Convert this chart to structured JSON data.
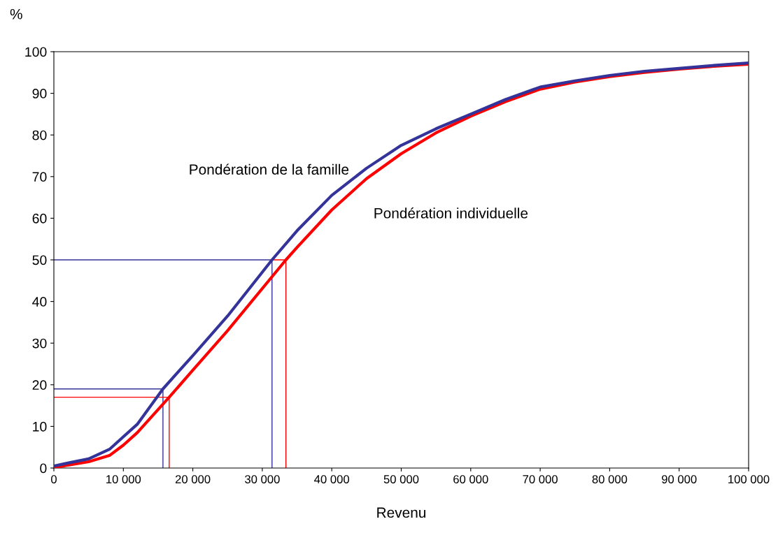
{
  "chart_data": {
    "type": "line",
    "xlabel": "Revenu",
    "ylabel": "%",
    "xlim": [
      0,
      100000
    ],
    "ylim": [
      0,
      100
    ],
    "xticks": [
      0,
      {
        "value": 10000,
        "label": "10 000"
      },
      {
        "value": 20000,
        "label": "20 000"
      },
      {
        "value": 30000,
        "label": "30 000"
      },
      {
        "value": 40000,
        "label": "40 000"
      },
      {
        "value": 50000,
        "label": "50 000"
      },
      {
        "value": 60000,
        "label": "60 000"
      },
      {
        "value": 70000,
        "label": "70 000"
      },
      {
        "value": 80000,
        "label": "80 000"
      },
      {
        "value": 90000,
        "label": "90 000"
      },
      {
        "value": 100000,
        "label": "100 000"
      }
    ],
    "yticks": [
      0,
      10,
      20,
      30,
      40,
      50,
      60,
      70,
      80,
      90,
      100
    ],
    "grid": false,
    "legend": false,
    "marker": "none",
    "line_style": "solid",
    "series": [
      {
        "name": "Pondération individuelle",
        "color": "#ff0000",
        "x": [
          0,
          2000,
          5000,
          8000,
          10000,
          12000,
          16600,
          20000,
          25000,
          33400,
          35000,
          40000,
          45000,
          50000,
          55000,
          60000,
          65000,
          70000,
          75000,
          80000,
          85000,
          90000,
          95000,
          100000
        ],
        "values": [
          0,
          0.7,
          1.5,
          3,
          5.5,
          8.5,
          17,
          23.5,
          33,
          50,
          53,
          62,
          69.5,
          75.5,
          80.5,
          84.5,
          88,
          91,
          92.7,
          94,
          95,
          95.8,
          96.5,
          97
        ]
      },
      {
        "name": "Pondération de la famille",
        "color": "#333399",
        "x": [
          0,
          2000,
          5000,
          8000,
          10000,
          12000,
          15700,
          20000,
          25000,
          31400,
          35000,
          40000,
          45000,
          50000,
          55000,
          60000,
          65000,
          70000,
          75000,
          80000,
          85000,
          90000,
          95000,
          100000
        ],
        "values": [
          0.5,
          1.2,
          2.2,
          4.5,
          7.5,
          10.5,
          19,
          27,
          36.5,
          50,
          57,
          65.5,
          72,
          77.5,
          81.5,
          85,
          88.5,
          91.5,
          93,
          94.3,
          95.3,
          96,
          96.7,
          97.3
        ]
      },
      {
        "color": "#333399",
        "x": [
          0,
          15700,
          15700
        ],
        "values": [
          19,
          19,
          0
        ]
      },
      {
        "color": "#ff0000",
        "x": [
          0,
          16600,
          16600
        ],
        "values": [
          17,
          17,
          0
        ]
      },
      {
        "color": "#333399",
        "x": [
          0,
          31400,
          31400
        ],
        "values": [
          50,
          50,
          0
        ]
      },
      {
        "color": "#ff0000",
        "x": [
          31400,
          33400,
          33400
        ],
        "values": [
          50,
          50,
          0
        ]
      }
    ]
  }
}
